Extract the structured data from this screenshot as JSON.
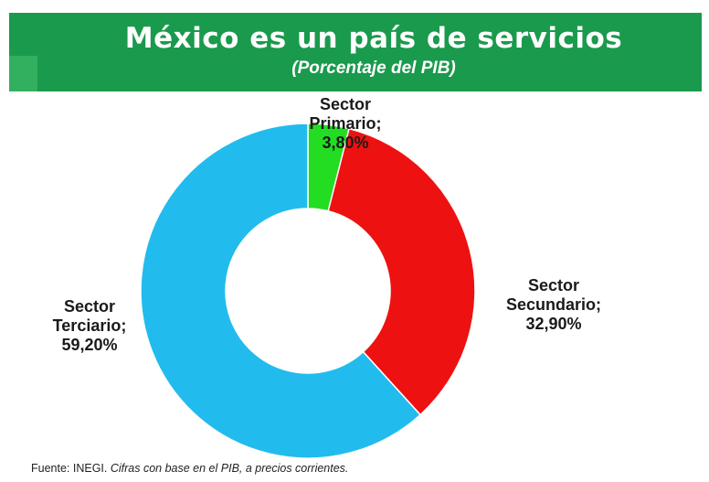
{
  "header": {
    "title": "México es un país de servicios",
    "subtitle": "(Porcentaje del PIB)"
  },
  "colors": {
    "header_bg": "#1a9a4c",
    "primario": "#22dd22",
    "secundario": "#ee1111",
    "terciario": "#22bbee"
  },
  "chart_data": {
    "type": "pie",
    "variant": "donut",
    "title": "México es un país de servicios",
    "subtitle": "(Porcentaje del PIB)",
    "slices": [
      {
        "category": "Sector Primario",
        "value": 3.8,
        "label_lines": [
          "Sector",
          "Primario;",
          "3,80%"
        ],
        "color": "#22dd22"
      },
      {
        "category": "Sector Secundario",
        "value": 32.9,
        "label_lines": [
          "Sector",
          "Secundario;",
          "32,90%"
        ],
        "color": "#ee1111"
      },
      {
        "category": "Sector Terciario",
        "value": 59.2,
        "label_lines": [
          "Sector",
          "Terciario;",
          "59,20%"
        ],
        "color": "#22bbee"
      }
    ],
    "start": "12 o'clock",
    "direction": "clockwise",
    "legend": "none"
  },
  "source": {
    "prefix": "Fuente: INEGI.",
    "italic": "Cifras con base en el PIB,  a precios corrientes."
  }
}
